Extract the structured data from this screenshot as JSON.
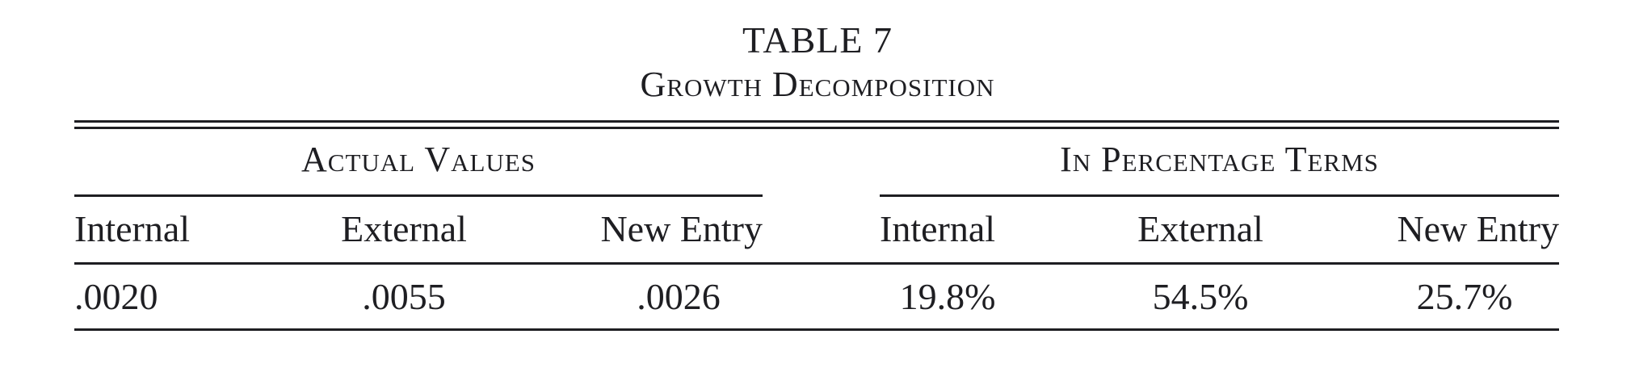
{
  "table": {
    "label": "TABLE 7",
    "title": "Growth Decomposition",
    "groups": [
      {
        "label": "Actual Values"
      },
      {
        "label": "In Percentage Terms"
      }
    ],
    "columns": [
      "Internal",
      "External",
      "New Entry",
      "Internal",
      "External",
      "New Entry"
    ],
    "rows": [
      [
        ".0020",
        ".0055",
        ".0026",
        "19.8%",
        "54.5%",
        "25.7%"
      ]
    ]
  }
}
